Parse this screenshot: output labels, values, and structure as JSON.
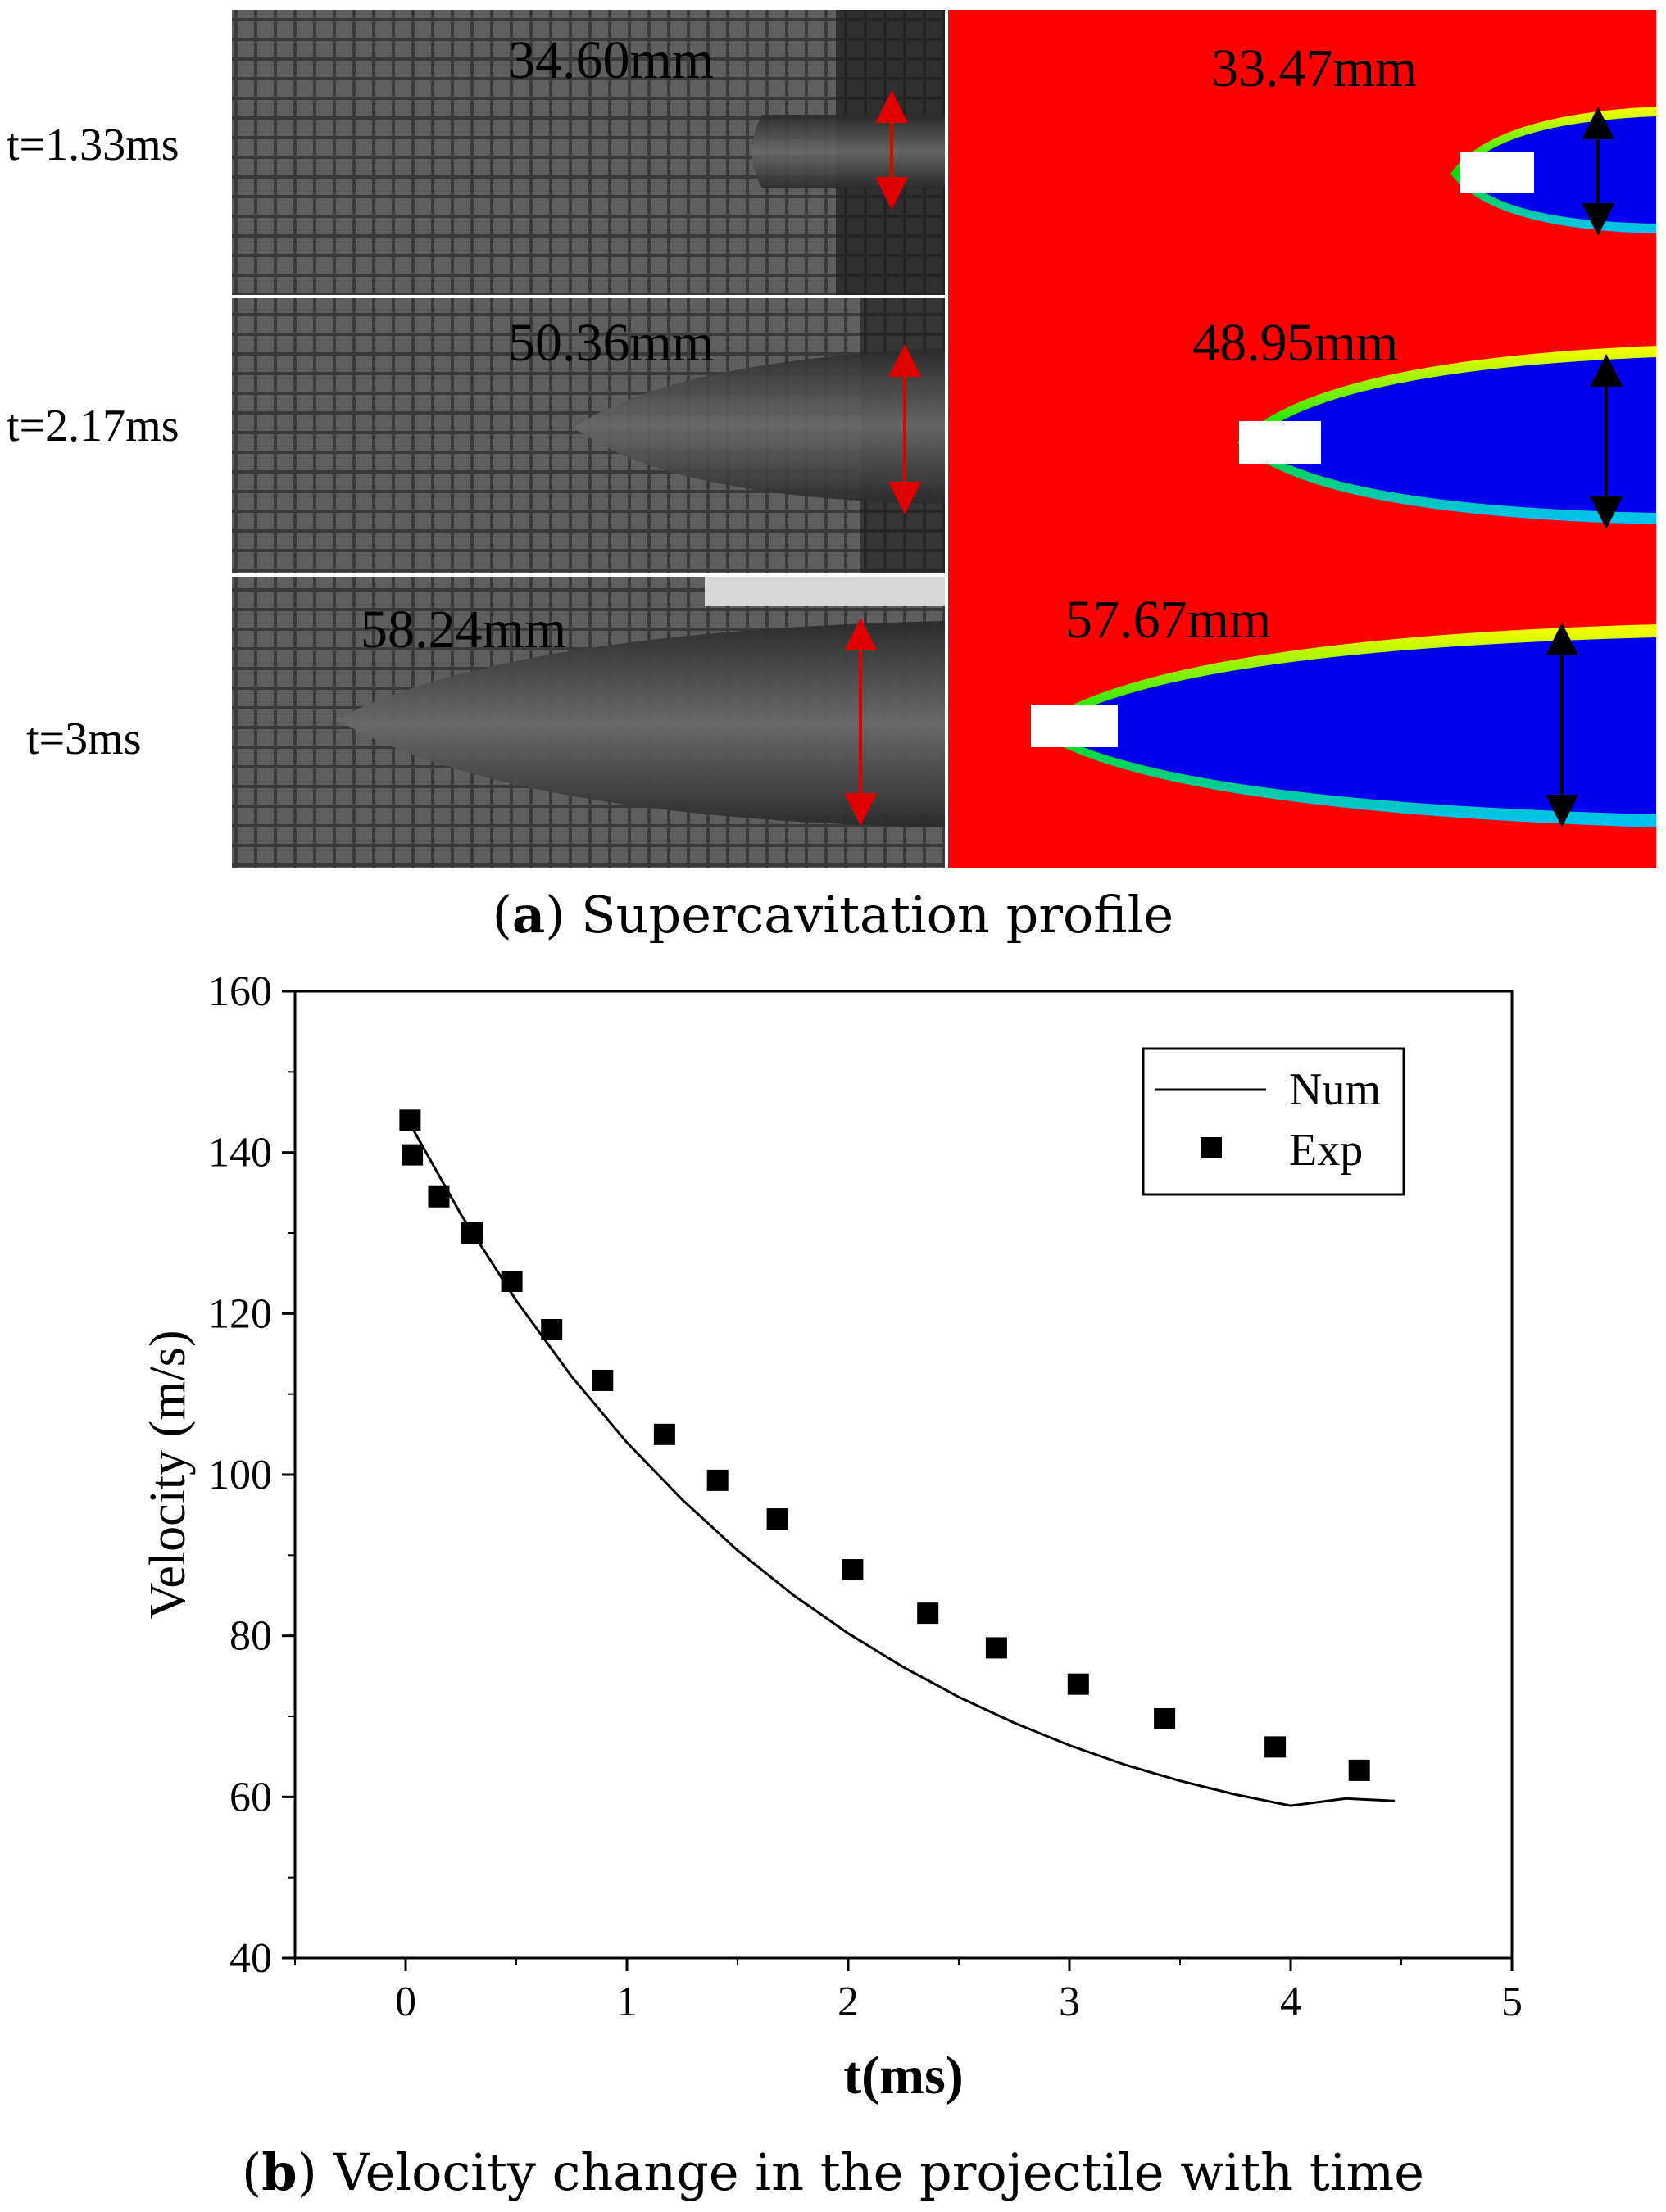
{
  "panel_a": {
    "times": [
      "t=1.33ms",
      "t=2.17ms",
      "t=3ms"
    ],
    "exp_lengths": [
      "34.60mm",
      "50.36mm",
      "58.24mm"
    ],
    "num_lengths": [
      "33.47mm",
      "48.95mm",
      "57.67mm"
    ],
    "caption_letter": "a",
    "caption_text": " Supercavitation profile"
  },
  "panel_b": {
    "caption_letter": "b",
    "caption_text": " Velocity change in the projectile with time"
  },
  "colors": {
    "num_background": "#ff0000",
    "cavity": "#0000ee",
    "arrow_exp": "#e00000",
    "arrow_num": "#000000"
  },
  "chart_data": {
    "type": "line+scatter",
    "xlabel": "t(ms)",
    "ylabel": "Velocity (m/s)",
    "xlim": [
      -0.5,
      5
    ],
    "ylim": [
      40,
      160
    ],
    "xticks": [
      0,
      1,
      2,
      3,
      4,
      5
    ],
    "yticks": [
      40,
      60,
      80,
      100,
      120,
      140,
      160
    ],
    "legend_position": "top-right",
    "series": [
      {
        "name": "Num",
        "kind": "line",
        "x": [
          0,
          0.25,
          0.5,
          0.75,
          1.0,
          1.25,
          1.5,
          1.75,
          2.0,
          2.25,
          2.5,
          2.75,
          3.0,
          3.25,
          3.5,
          3.75,
          4.0,
          4.25,
          4.47
        ],
        "y": [
          144.5,
          132.3,
          121.6,
          112.2,
          104.0,
          96.9,
          90.6,
          85.1,
          80.3,
          76.1,
          72.4,
          69.2,
          66.4,
          64.0,
          62.0,
          60.3,
          58.9,
          59.8,
          59.5
        ]
      },
      {
        "name": "Exp",
        "kind": "scatter",
        "x": [
          0.02,
          0.03,
          0.15,
          0.3,
          0.48,
          0.66,
          0.89,
          1.17,
          1.41,
          1.68,
          2.02,
          2.36,
          2.67,
          3.04,
          3.43,
          3.93,
          4.31
        ],
        "y": [
          144.0,
          139.7,
          134.5,
          130.0,
          124.0,
          118.0,
          111.7,
          105.0,
          99.3,
          94.5,
          88.2,
          82.8,
          78.5,
          74.0,
          69.7,
          66.2,
          63.3
        ]
      }
    ]
  }
}
